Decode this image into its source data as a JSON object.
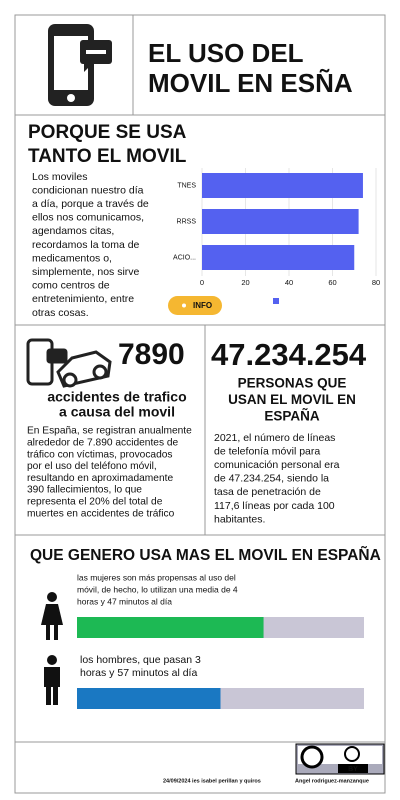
{
  "header": {
    "title": [
      "EL USO DEL",
      "MOVIL EN ESÑA"
    ]
  },
  "section1": {
    "title": [
      "PORQUE SE USA",
      "TANTO EL MOVIL"
    ],
    "text": [
      "Los moviles",
      "condicionan nuestro día",
      "a día, porque a través de",
      "ellos nos comunicamos,",
      "agendamos citas,",
      "recordamos la toma de",
      "medicamentos o,",
      "simplemente, nos sirve",
      "como centros de",
      "entretenimiento, entre",
      "otras cosas."
    ],
    "button": "INFO"
  },
  "chart_data": [
    {
      "type": "hbar",
      "categories": [
        "TNES",
        "RRSS",
        "ACIO..."
      ],
      "values": [
        74,
        72,
        70
      ],
      "color": "#5461f0",
      "xlim": [
        0,
        80
      ],
      "xticks": [
        0,
        20,
        40,
        60,
        80
      ],
      "grid": true
    },
    {
      "type": "progress",
      "categories": [
        [
          "las mujeres son más propensas al uso del",
          "móvil, de hecho, lo utilizan una media de 4",
          "horas y 47 minutos al día"
        ],
        [
          "los hombres, que pasan 3",
          "horas y 57 minutos al día"
        ]
      ],
      "values": [
        65,
        50
      ],
      "colors": [
        "#1db954",
        "#1a78c2"
      ],
      "xlim": [
        0,
        100
      ]
    }
  ],
  "section2": {
    "left": {
      "number": "7890",
      "title": [
        "accidentes de trafico",
        "a causa del movil"
      ],
      "text": [
        "En España, se registran anualmente",
        "alrededor de 7.890 accidentes de",
        "tráfico con víctimas, provocados",
        "por el uso del teléfono móvil,",
        "resultando en aproximadamente",
        "390 fallecimientos, lo que",
        "representa el 20% del total de",
        "muertes en accidentes de tráfico"
      ]
    },
    "right": {
      "number": "47.234.254",
      "title": [
        "PERSONAS QUE",
        "USAN EL MOVIL EN",
        "ESPAÑA"
      ],
      "text": [
        "2021, el número de líneas",
        "de telefonía móvil para",
        "comunicación personal era",
        "de 47.234.254, siendo la",
        "tasa de penetración de",
        "117,6 líneas por cada 100",
        "habitantes."
      ]
    }
  },
  "section3": {
    "title": "QUE GENERO USA MAS EL MOVIL  EN ESPAÑA"
  },
  "footer": {
    "badge": "BY",
    "date": "24/09/2024 ies isabel perillan y quiros",
    "author": "Angel rodriguez-manzanque"
  }
}
